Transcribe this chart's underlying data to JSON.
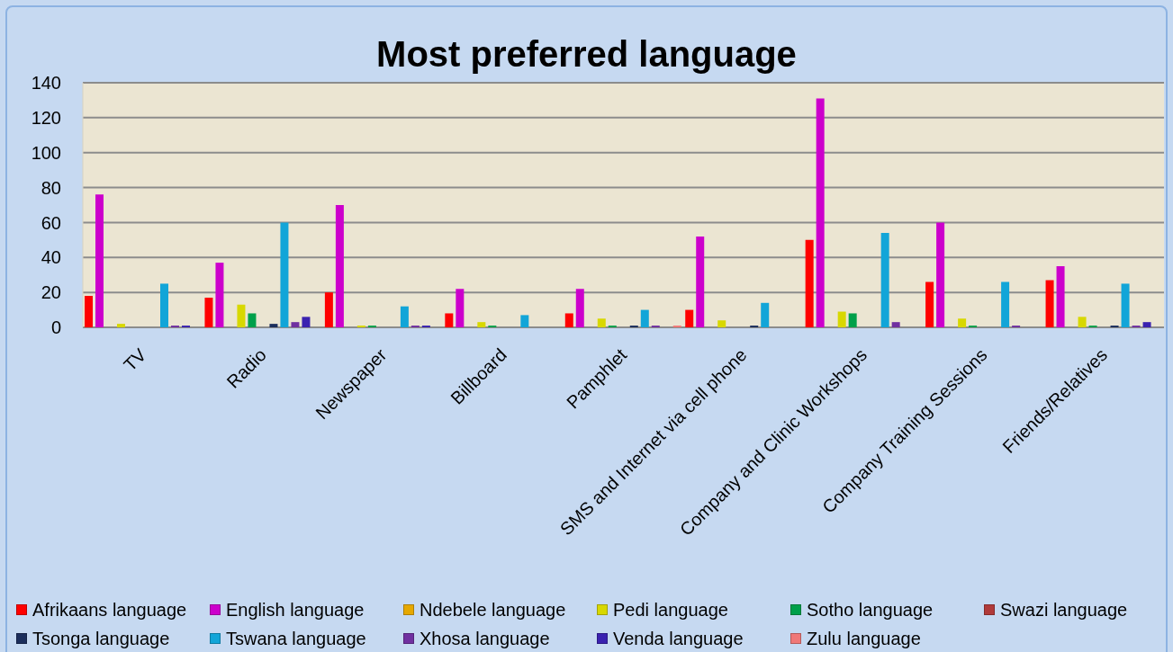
{
  "chart_data": {
    "type": "bar",
    "title": "Most preferred language",
    "categories": [
      "TV",
      "Radio",
      "Newspaper",
      "Billboard",
      "Pamphlet",
      "SMS and Internet via cell phone",
      "Company and Clinic Workshops",
      "Company Training Sessions",
      "Friends/Relatives"
    ],
    "series": [
      {
        "name": "Afrikaans language",
        "color": "#ff0000",
        "values": [
          18,
          17,
          20,
          8,
          8,
          10,
          50,
          26,
          27
        ]
      },
      {
        "name": "English language",
        "color": "#cc00cc",
        "values": [
          76,
          37,
          70,
          22,
          22,
          52,
          131,
          60,
          35
        ]
      },
      {
        "name": "Ndebele language",
        "color": "#e6a800",
        "values": [
          null,
          null,
          null,
          null,
          null,
          null,
          null,
          null,
          null
        ]
      },
      {
        "name": "Pedi language",
        "color": "#d8d800",
        "values": [
          2,
          13,
          1,
          3,
          5,
          4,
          9,
          5,
          6
        ]
      },
      {
        "name": "Sotho language",
        "color": "#00a04a",
        "values": [
          null,
          8,
          1,
          1,
          1,
          null,
          8,
          1,
          1
        ]
      },
      {
        "name": "Swazi language",
        "color": "#b03a3a",
        "values": [
          null,
          null,
          null,
          null,
          null,
          null,
          null,
          null,
          null
        ]
      },
      {
        "name": "Tsonga language",
        "color": "#1c2e5c",
        "values": [
          null,
          2,
          null,
          null,
          1,
          1,
          null,
          null,
          1
        ]
      },
      {
        "name": "Tswana language",
        "color": "#12a5d8",
        "values": [
          25,
          60,
          12,
          7,
          10,
          14,
          54,
          26,
          25
        ]
      },
      {
        "name": "Xhosa language",
        "color": "#7030a0",
        "values": [
          1,
          3,
          1,
          null,
          1,
          null,
          3,
          1,
          1
        ]
      },
      {
        "name": "Venda language",
        "color": "#3a22b0",
        "values": [
          1,
          6,
          1,
          null,
          null,
          null,
          null,
          null,
          3
        ]
      },
      {
        "name": "Zulu language",
        "color": "#f07878",
        "values": [
          null,
          null,
          null,
          null,
          1,
          null,
          null,
          null,
          null
        ]
      }
    ],
    "ylim": [
      0,
      140
    ],
    "yticks": [
      0,
      20,
      40,
      60,
      80,
      100,
      120,
      140
    ],
    "grid": "y",
    "legend": "bottom"
  }
}
